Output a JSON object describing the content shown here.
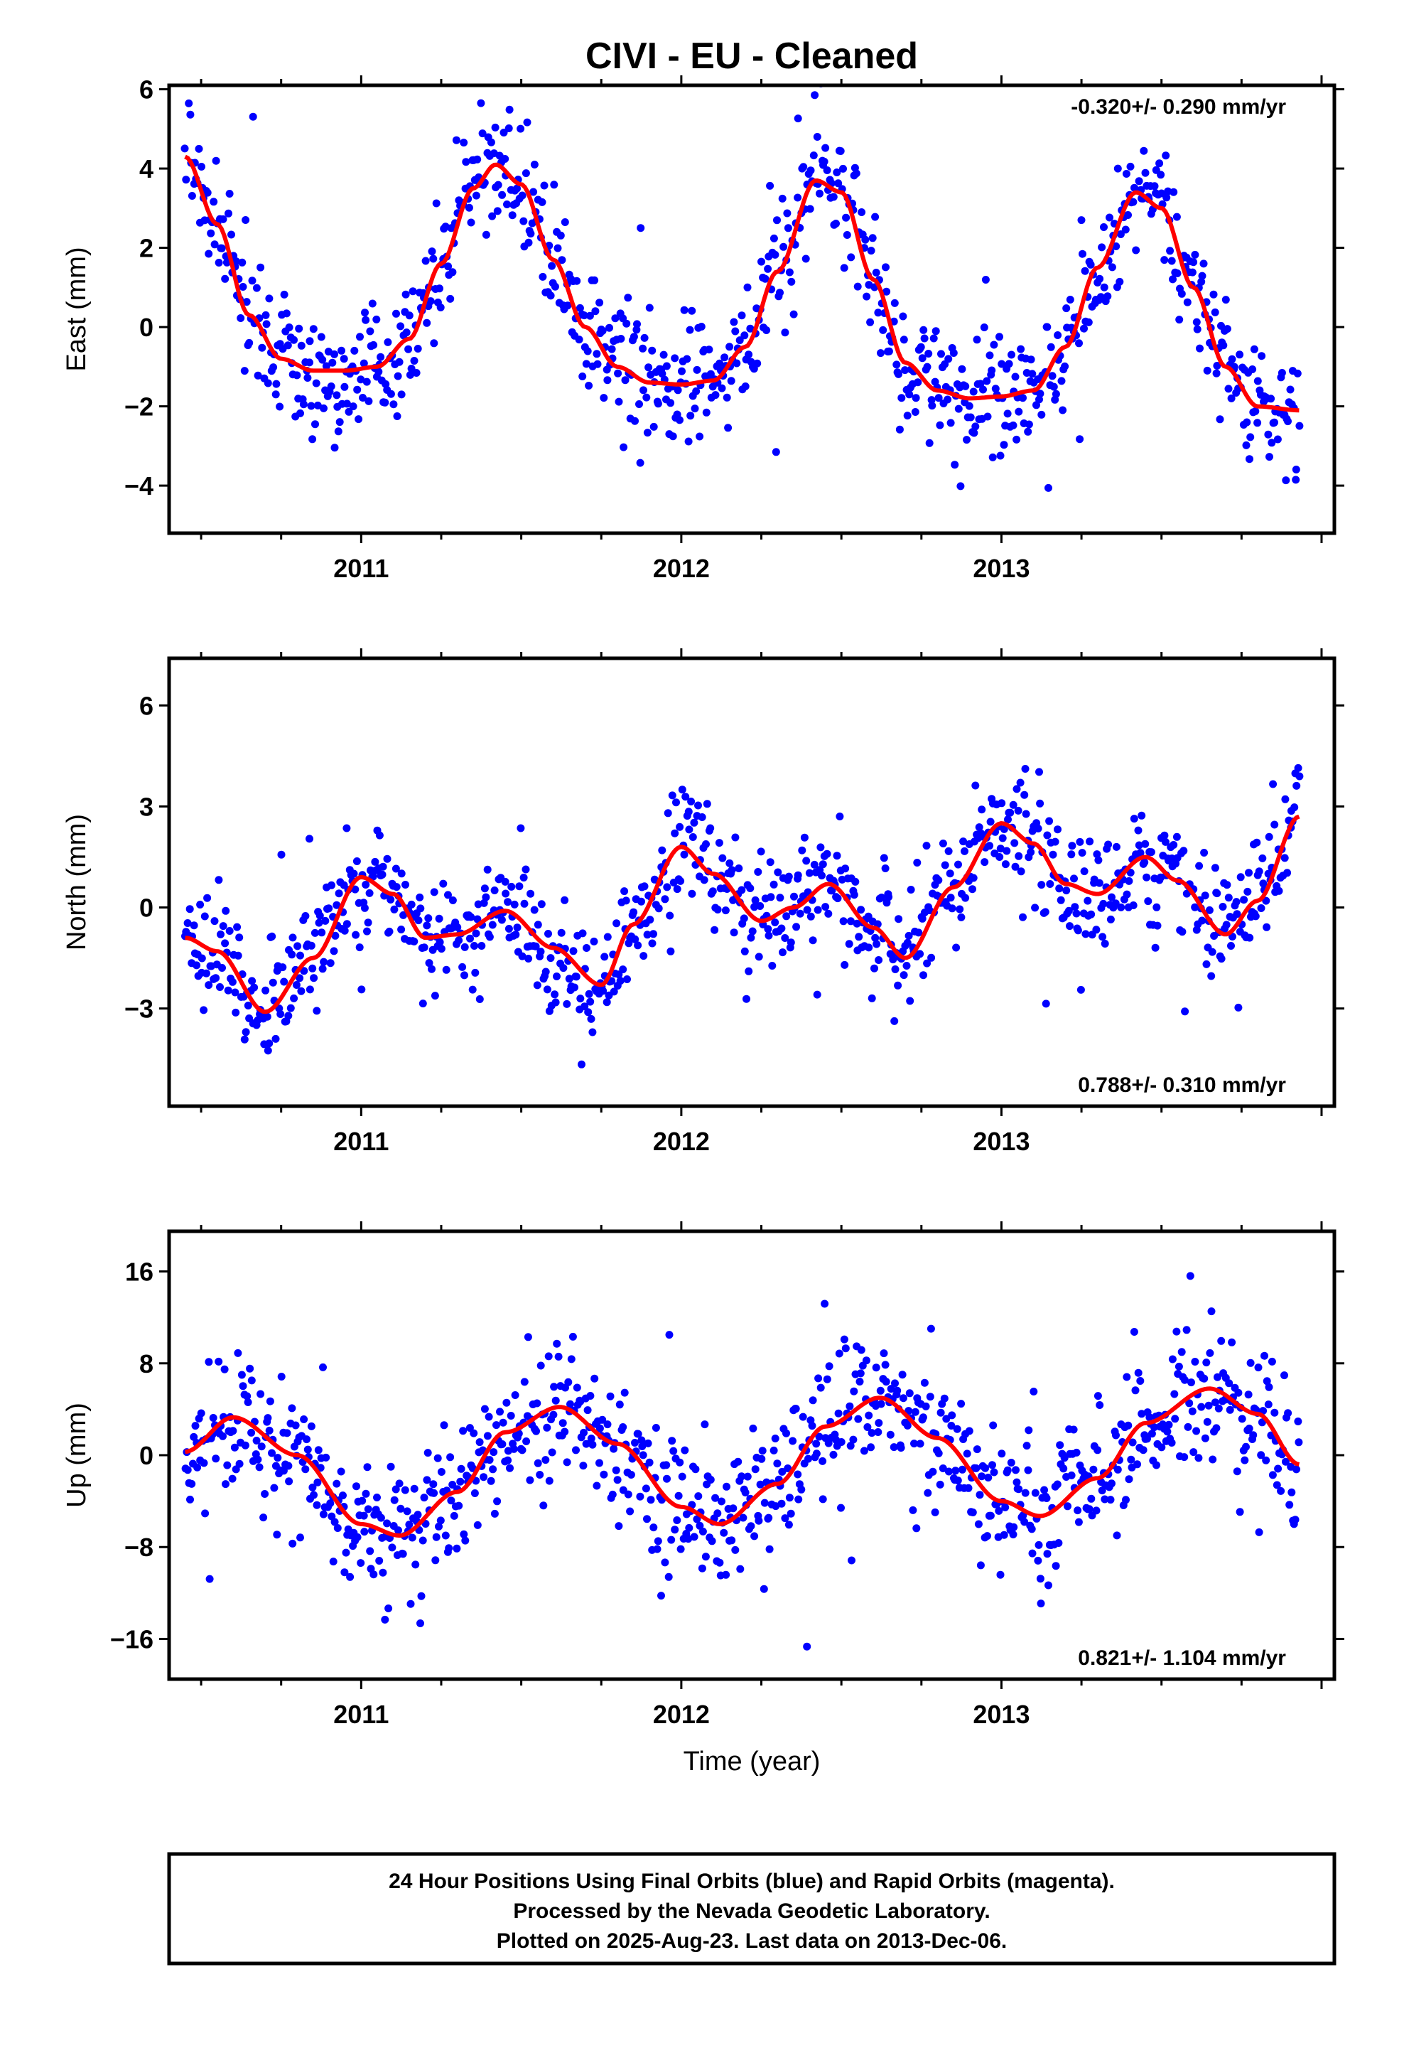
{
  "title": "CIVI  - EU - Cleaned",
  "xlabel": "Time (year)",
  "colors": {
    "final_orbits": "#0000ff",
    "model_fit": "#ff0000",
    "frame": "#000000"
  },
  "footer": [
    "24 Hour Positions Using Final Orbits (blue) and Rapid Orbits (magenta).",
    "Processed by the Nevada Geodetic Laboratory.",
    "Plotted on 2025-Aug-23. Last data on 2013-Dec-06."
  ],
  "chart_data": [
    {
      "type": "scatter",
      "ylabel": "East (mm)",
      "rate": "-0.320+/- 0.290 mm/yr",
      "rate_position": "top-right",
      "xlim": [
        2010.4,
        2014.04
      ],
      "ylim": [
        -5.2,
        6.1
      ],
      "yticks": [
        -4,
        -2,
        0,
        2,
        4,
        6
      ],
      "xticks": [
        2011,
        2012,
        2013
      ],
      "xtick_labels": [
        "2011",
        "2012",
        "2013"
      ],
      "data_start": 2010.45,
      "data_end": 2013.93,
      "fit_x": [
        2010.45,
        2010.55,
        2010.65,
        2010.75,
        2010.85,
        2010.95,
        2011.05,
        2011.15,
        2011.25,
        2011.35,
        2011.42,
        2011.5,
        2011.6,
        2011.7,
        2011.8,
        2011.9,
        2012.0,
        2012.1,
        2012.2,
        2012.3,
        2012.42,
        2012.5,
        2012.6,
        2012.7,
        2012.8,
        2012.9,
        2013.0,
        2013.1,
        2013.2,
        2013.3,
        2013.42,
        2013.5,
        2013.6,
        2013.7,
        2013.8,
        2013.93
      ],
      "fit_y": [
        4.3,
        2.6,
        0.3,
        -0.8,
        -1.1,
        -1.1,
        -1.0,
        -0.3,
        1.6,
        3.5,
        4.1,
        3.6,
        1.7,
        0.0,
        -1.0,
        -1.4,
        -1.45,
        -1.35,
        -0.5,
        1.4,
        3.7,
        3.4,
        1.2,
        -0.9,
        -1.6,
        -1.8,
        -1.75,
        -1.6,
        -0.5,
        1.5,
        3.4,
        3.0,
        1.0,
        -1.0,
        -2.0,
        -2.1
      ],
      "scatter": {
        "count": 900,
        "noise": 0.75,
        "outlier_rate": 0.03,
        "outlier_scale": 2.6
      }
    },
    {
      "type": "scatter",
      "ylabel": "North (mm)",
      "rate": "0.788+/- 0.310 mm/yr",
      "rate_position": "bottom-right",
      "xlim": [
        2010.4,
        2014.04
      ],
      "ylim": [
        -5.9,
        7.4
      ],
      "yticks": [
        -3,
        0,
        3,
        6
      ],
      "xticks": [
        2011,
        2012,
        2013
      ],
      "xtick_labels": [
        "2011",
        "2012",
        "2013"
      ],
      "data_start": 2010.45,
      "data_end": 2013.93,
      "fit_x": [
        2010.45,
        2010.55,
        2010.7,
        2010.85,
        2011.0,
        2011.1,
        2011.2,
        2011.3,
        2011.45,
        2011.6,
        2011.75,
        2011.85,
        2012.0,
        2012.1,
        2012.25,
        2012.35,
        2012.46,
        2012.6,
        2012.7,
        2012.85,
        2013.0,
        2013.1,
        2013.2,
        2013.3,
        2013.45,
        2013.55,
        2013.7,
        2013.8,
        2013.93
      ],
      "fit_y": [
        -0.9,
        -1.3,
        -3.1,
        -1.5,
        0.9,
        0.4,
        -0.9,
        -0.8,
        -0.1,
        -1.2,
        -2.3,
        -0.5,
        1.8,
        1.0,
        -0.4,
        0.0,
        0.7,
        -0.6,
        -1.5,
        0.6,
        2.5,
        1.9,
        0.7,
        0.4,
        1.5,
        0.8,
        -0.8,
        0.2,
        2.7
      ],
      "scatter": {
        "count": 900,
        "noise": 0.85,
        "outlier_rate": 0.03,
        "outlier_scale": 3.0
      }
    },
    {
      "type": "scatter",
      "ylabel": "Up (mm)",
      "rate": "0.821+/- 1.104 mm/yr",
      "rate_position": "bottom-right",
      "xlim": [
        2010.4,
        2014.04
      ],
      "ylim": [
        -19.5,
        19.5
      ],
      "yticks": [
        -16,
        -8,
        0,
        8,
        16
      ],
      "ytick_labels": [
        "−16",
        "−8",
        "0",
        "8",
        "16"
      ],
      "xticks": [
        2011,
        2012,
        2013
      ],
      "xtick_labels": [
        "2011",
        "2012",
        "2013"
      ],
      "data_start": 2010.45,
      "data_end": 2013.93,
      "fit_x": [
        2010.45,
        2010.6,
        2010.8,
        2011.0,
        2011.12,
        2011.3,
        2011.45,
        2011.62,
        2011.8,
        2012.0,
        2012.12,
        2012.3,
        2012.45,
        2012.62,
        2012.8,
        2013.0,
        2013.12,
        2013.3,
        2013.45,
        2013.65,
        2013.8,
        2013.93
      ],
      "fit_y": [
        0.3,
        3.3,
        0.0,
        -6.0,
        -7.0,
        -3.2,
        2.0,
        4.2,
        1.0,
        -4.5,
        -6.0,
        -2.5,
        2.5,
        5.0,
        1.5,
        -4.0,
        -5.3,
        -2.0,
        2.8,
        5.8,
        3.6,
        -0.8
      ],
      "scatter": {
        "count": 900,
        "noise": 3.0,
        "outlier_rate": 0.03,
        "outlier_scale": 2.6
      }
    }
  ]
}
